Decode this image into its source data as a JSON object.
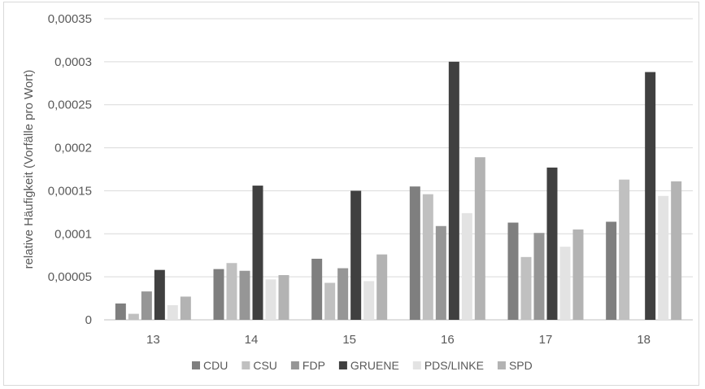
{
  "chart_data": {
    "type": "bar",
    "ylabel": "relative Häufigkeit (Vorfälle pro Wort)",
    "categories": [
      "13",
      "14",
      "15",
      "16",
      "17",
      "18"
    ],
    "ylim": [
      0,
      0.00035
    ],
    "yticks": [
      "0",
      "0,00005",
      "0,0001",
      "0,00015",
      "0,0002",
      "0,00025",
      "0,0003",
      "0,00035"
    ],
    "grid": true,
    "legend_position": "bottom",
    "series": [
      {
        "name": "CDU",
        "color": "#7f7f7f",
        "values": [
          1.9e-05,
          5.9e-05,
          7.1e-05,
          0.000155,
          0.000113,
          0.000114
        ]
      },
      {
        "name": "CSU",
        "color": "#c0c0c0",
        "values": [
          7e-06,
          6.6e-05,
          4.3e-05,
          0.000146,
          7.3e-05,
          0.000163
        ]
      },
      {
        "name": "FDP",
        "color": "#969696",
        "values": [
          3.3e-05,
          5.7e-05,
          6e-05,
          0.000109,
          0.000101,
          null
        ]
      },
      {
        "name": "GRUENE",
        "color": "#404040",
        "values": [
          5.8e-05,
          0.000156,
          0.00015,
          0.0003,
          0.000177,
          0.000288
        ]
      },
      {
        "name": "PDS/LINKE",
        "color": "#e3e3e3",
        "values": [
          1.7e-05,
          4.7e-05,
          4.5e-05,
          0.000124,
          8.5e-05,
          0.000144
        ]
      },
      {
        "name": "SPD",
        "color": "#b3b3b3",
        "values": [
          2.7e-05,
          5.2e-05,
          7.6e-05,
          0.000189,
          0.000105,
          0.000161
        ]
      }
    ]
  }
}
